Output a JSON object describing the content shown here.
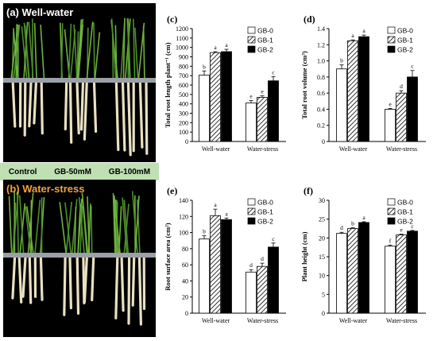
{
  "photos": {
    "a": {
      "label": "(a) Well-water"
    },
    "b": {
      "label": "(b) Water-stress"
    },
    "treatments": [
      "Control",
      "GB-50mM",
      "GB-100mM"
    ]
  },
  "legend": [
    "GB-0",
    "GB-1",
    "GB-2"
  ],
  "chart_data": [
    {
      "type": "bar",
      "panel": "(c)",
      "ylabel": "Total root length plant⁻¹ (cm)",
      "categories": [
        "Well-water",
        "Water-stress"
      ],
      "ylim": [
        0,
        1200
      ],
      "ticks": [
        0,
        100,
        200,
        300,
        400,
        500,
        600,
        700,
        800,
        900,
        1000,
        1100,
        1200
      ],
      "series": [
        {
          "name": "GB-0",
          "values": [
            705,
            410
          ],
          "errors": [
            45,
            25
          ],
          "letters": [
            "b",
            "e"
          ]
        },
        {
          "name": "GB-1",
          "values": [
            945,
            470
          ],
          "errors": [
            10,
            15
          ],
          "letters": [
            "a",
            "e"
          ]
        },
        {
          "name": "GB-2",
          "values": [
            955,
            645
          ],
          "errors": [
            25,
            45
          ],
          "letters": [
            "a",
            "c"
          ]
        }
      ]
    },
    {
      "type": "bar",
      "panel": "(d)",
      "ylabel": "Total root volume (cm³)",
      "categories": [
        "Well-water",
        "Water-stress"
      ],
      "ylim": [
        0,
        1.4
      ],
      "ticks": [
        0,
        0.2,
        0.4,
        0.6,
        0.8,
        1.0,
        1.2,
        1.4
      ],
      "tick_labels": [
        "0",
        "0.2",
        "0.4",
        "0.6",
        "0.8",
        "1.0",
        "1.2",
        "1.4"
      ],
      "series": [
        {
          "name": "GB-0",
          "values": [
            0.9,
            0.4
          ],
          "errors": [
            0.05,
            0.01
          ],
          "letters": [
            "b",
            "e"
          ]
        },
        {
          "name": "GB-1",
          "values": [
            1.25,
            0.6
          ],
          "errors": [
            0.01,
            0.03
          ],
          "letters": [
            "a",
            "d"
          ]
        },
        {
          "name": "GB-2",
          "values": [
            1.3,
            0.8
          ],
          "errors": [
            0.02,
            0.08
          ],
          "letters": [
            "a",
            "c"
          ]
        }
      ]
    },
    {
      "type": "bar",
      "panel": "(e)",
      "ylabel": "Root surface area (cm²)",
      "categories": [
        "Well-water",
        "Water-stress"
      ],
      "ylim": [
        0,
        140
      ],
      "ticks": [
        0,
        20,
        40,
        60,
        80,
        100,
        120,
        140
      ],
      "series": [
        {
          "name": "GB-0",
          "values": [
            92,
            51
          ],
          "errors": [
            4,
            3
          ],
          "letters": [
            "b",
            "d"
          ]
        },
        {
          "name": "GB-1",
          "values": [
            121,
            58
          ],
          "errors": [
            8,
            4
          ],
          "letters": [
            "a",
            "d"
          ]
        },
        {
          "name": "GB-2",
          "values": [
            116,
            82
          ],
          "errors": [
            2,
            5
          ],
          "letters": [
            "a",
            "c"
          ]
        }
      ]
    },
    {
      "type": "bar",
      "panel": "(f)",
      "ylabel": "Plant height (cm)",
      "categories": [
        "Well-water",
        "Water-stress"
      ],
      "ylim": [
        0,
        30
      ],
      "ticks": [
        0,
        5,
        10,
        15,
        20,
        25,
        30
      ],
      "series": [
        {
          "name": "GB-0",
          "values": [
            21.2,
            17.8
          ],
          "errors": [
            0.3,
            0.3
          ],
          "letters": [
            "d",
            "f"
          ]
        },
        {
          "name": "GB-1",
          "values": [
            22.5,
            20.8
          ],
          "errors": [
            0.2,
            0.2
          ],
          "letters": [
            "b",
            "e"
          ]
        },
        {
          "name": "GB-2",
          "values": [
            24.1,
            21.8
          ],
          "errors": [
            0.2,
            0.2
          ],
          "letters": [
            "a",
            "c"
          ]
        }
      ]
    }
  ]
}
